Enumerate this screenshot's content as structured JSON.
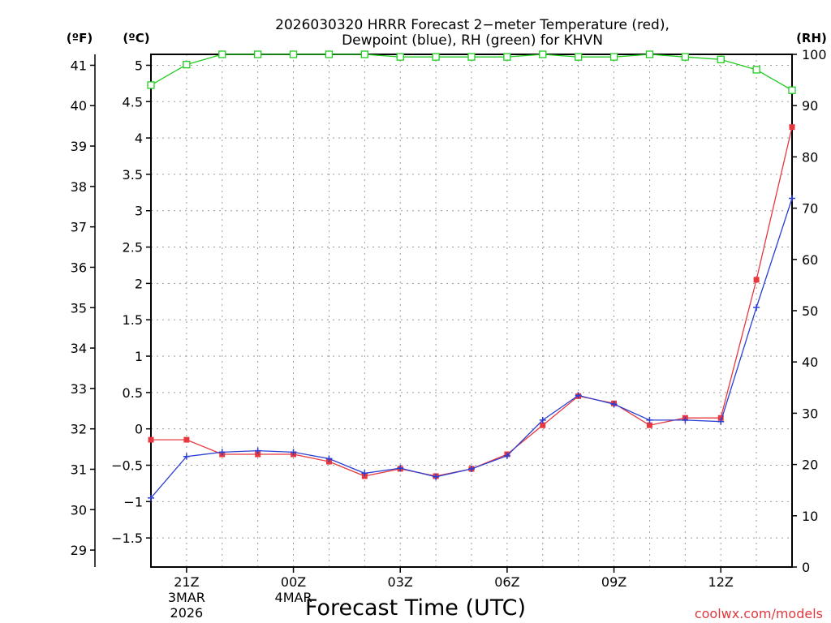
{
  "chart_data": {
    "type": "line",
    "title_lines": [
      "2026030320 HRRR Forecast 2−meter Temperature (red),",
      "Dewpoint (blue), RH (green) for KHVN"
    ],
    "xlabel": "Forecast Time (UTC)",
    "credit": "coolwx.com/models",
    "axis_titles": {
      "fahrenheit": "(ºF)",
      "celsius": "(ºC)",
      "rh": "(RH)"
    },
    "x_range_hours": [
      0,
      18
    ],
    "x_ticks": [
      {
        "hour": 1,
        "lines": [
          "21Z",
          "3MAR",
          "2026"
        ]
      },
      {
        "hour": 4,
        "lines": [
          "00Z",
          "4MAR"
        ]
      },
      {
        "hour": 7,
        "lines": [
          "03Z"
        ]
      },
      {
        "hour": 10,
        "lines": [
          "06Z"
        ]
      },
      {
        "hour": 13,
        "lines": [
          "09Z"
        ]
      },
      {
        "hour": 16,
        "lines": [
          "12Z"
        ]
      }
    ],
    "celsius_axis": {
      "range": [
        -1.9,
        5.15
      ],
      "ticks": [
        -1.5,
        -1,
        -0.5,
        0,
        0.5,
        1,
        1.5,
        2,
        2.5,
        3,
        3.5,
        4,
        4.5,
        5
      ],
      "tick_labels": [
        "−1.5",
        "−1",
        "−0.5",
        "0",
        "0.5",
        "1",
        "1.5",
        "2",
        "2.5",
        "3",
        "3.5",
        "4",
        "4.5",
        "5"
      ]
    },
    "fahrenheit_axis": {
      "ticks": [
        29,
        30,
        31,
        32,
        33,
        34,
        35,
        36,
        37,
        38,
        39,
        40,
        41
      ],
      "tick_labels": [
        "29",
        "30",
        "31",
        "32",
        "33",
        "34",
        "35",
        "36",
        "37",
        "38",
        "39",
        "40",
        "41"
      ]
    },
    "rh_axis": {
      "range": [
        0,
        100
      ],
      "ticks": [
        0,
        10,
        20,
        30,
        40,
        50,
        60,
        70,
        80,
        90,
        100
      ],
      "tick_labels": [
        "0",
        "10",
        "20",
        "30",
        "40",
        "50",
        "60",
        "70",
        "80",
        "90",
        "100"
      ]
    },
    "hours": [
      0,
      1,
      2,
      3,
      4,
      5,
      6,
      7,
      8,
      9,
      10,
      11,
      12,
      13,
      14,
      15,
      16,
      17,
      18
    ],
    "series": [
      {
        "name": "Temperature",
        "axis": "celsius",
        "color": "#e8383f",
        "marker": "filled-square",
        "values": [
          -0.15,
          -0.15,
          -0.35,
          -0.35,
          -0.35,
          -0.45,
          -0.65,
          -0.55,
          -0.65,
          -0.55,
          -0.35,
          0.05,
          0.45,
          0.35,
          0.05,
          0.15,
          0.15,
          2.05,
          4.15
        ]
      },
      {
        "name": "Dewpoint",
        "axis": "celsius",
        "color": "#2b3fd4",
        "marker": "plus",
        "values": [
          -0.95,
          -0.38,
          -0.32,
          -0.3,
          -0.32,
          -0.41,
          -0.61,
          -0.54,
          -0.66,
          -0.55,
          -0.37,
          0.12,
          0.46,
          0.34,
          0.12,
          0.12,
          0.1,
          1.67,
          3.17
        ]
      },
      {
        "name": "RH",
        "axis": "rh",
        "color": "#22cc22",
        "marker": "open-square",
        "values": [
          94,
          98,
          100,
          100,
          100,
          100,
          100,
          99.5,
          99.5,
          99.5,
          99.5,
          100,
          99.5,
          99.5,
          100,
          99.5,
          99,
          97,
          93
        ]
      }
    ]
  }
}
